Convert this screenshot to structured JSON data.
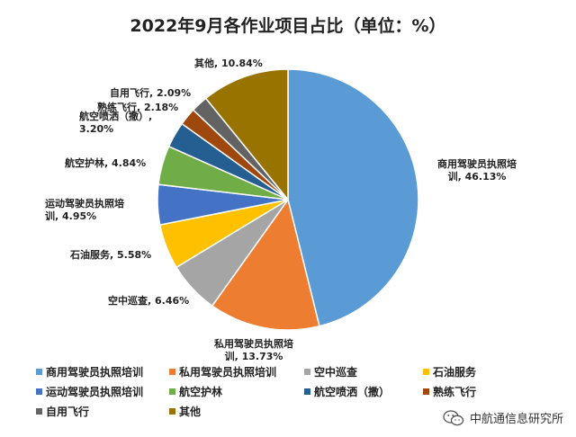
{
  "chart_data": {
    "type": "pie",
    "title": "2022年9月各作业项目占比（单位：%）",
    "slices": [
      {
        "name": "商用驾驶员执照培训",
        "value": 46.13,
        "color": "#5b9bd5",
        "label_lines": [
          "商用驾驶员执照培",
          "训, 46.13%"
        ]
      },
      {
        "name": "私用驾驶员执照培训",
        "value": 13.73,
        "color": "#ed7d31",
        "label_lines": [
          "私用驾驶员执照培",
          "训, 13.73%"
        ]
      },
      {
        "name": "空中巡查",
        "value": 6.46,
        "color": "#a5a5a5",
        "label_lines": [
          "空中巡查, 6.46%"
        ]
      },
      {
        "name": "石油服务",
        "value": 5.58,
        "color": "#ffc000",
        "label_lines": [
          "石油服务, 5.58%"
        ]
      },
      {
        "name": "运动驾驶员执照培训",
        "value": 4.95,
        "color": "#4472c4",
        "label_lines": [
          "运动驾驶员执照培",
          "训, 4.95%"
        ]
      },
      {
        "name": "航空护林",
        "value": 4.84,
        "color": "#70ad47",
        "label_lines": [
          "航空护林, 4.84%"
        ]
      },
      {
        "name": "航空喷洒（撒）",
        "value": 3.2,
        "color": "#255e91",
        "label_lines": [
          "航空喷洒（撒）,",
          "3.20%"
        ]
      },
      {
        "name": "熟练飞行",
        "value": 2.18,
        "color": "#9e480e",
        "label_lines": [
          "熟练飞行, 2.18%"
        ]
      },
      {
        "name": "自用飞行",
        "value": 2.09,
        "color": "#636363",
        "label_lines": [
          "自用飞行, 2.09%"
        ]
      },
      {
        "name": "其他",
        "value": 10.84,
        "color": "#997300",
        "label_lines": [
          "其他, 10.84%"
        ]
      }
    ],
    "legend_position": "bottom"
  },
  "source": "中航通信息研究所"
}
